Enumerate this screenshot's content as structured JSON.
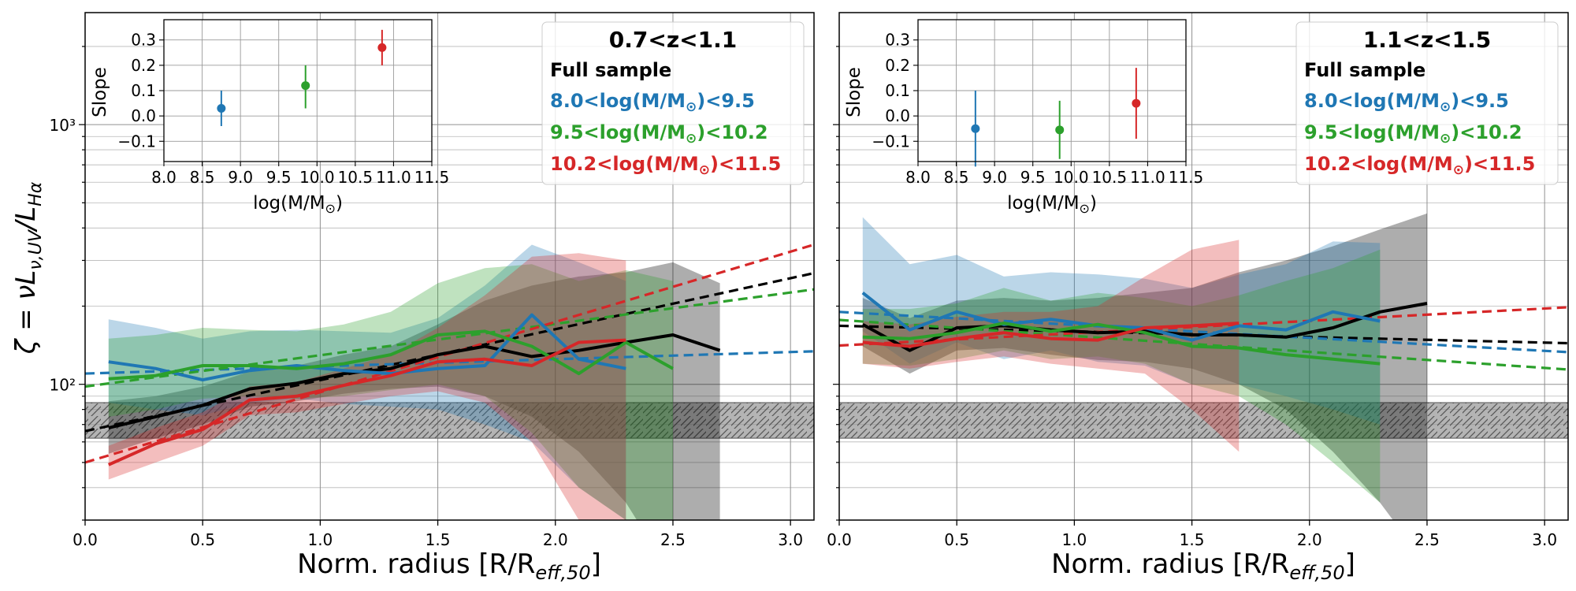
{
  "figure": {
    "ylabel": "ζ = νL",
    "ylabel_sub": "ν,UV",
    "ylabel_tail": "/L",
    "ylabel_sub2": "Hα",
    "xlabel": "Norm. radius [R/R",
    "xlabel_sub": "eff,50",
    "xlabel_tail": "]",
    "inset_ylabel": "Slope",
    "inset_xlabel": "log(M/M",
    "inset_xlabel_tail": ")",
    "colors": {
      "full": "#000000",
      "low": "#1f77b4",
      "mid": "#2ca02c",
      "high": "#d62728",
      "hatch": "#7f7f7f"
    }
  },
  "legend": {
    "full": "Full sample",
    "low": "8.0<log(M/M",
    "low_tail": ")<9.5",
    "mid": "9.5<log(M/M",
    "mid_tail": ")<10.2",
    "high": "10.2<log(M/M",
    "high_tail": ")<11.5"
  },
  "chart_data": [
    {
      "type": "line",
      "title": "0.7<z<1.1",
      "xlabel": "Norm. radius [R/R_eff,50]",
      "ylabel": "ζ = νL_ν,UV/L_Hα",
      "xlim": [
        0,
        3.1
      ],
      "ylim_log": [
        30,
        2700
      ],
      "xticks": [
        "0.0",
        "0.5",
        "1.0",
        "1.5",
        "2.0",
        "2.5",
        "3.0"
      ],
      "yticks": [
        "10²",
        "10³"
      ],
      "hatch_band": [
        62,
        85
      ],
      "series": [
        {
          "name": "Full sample",
          "color": "full",
          "x": [
            0.1,
            0.3,
            0.5,
            0.7,
            0.9,
            1.1,
            1.3,
            1.5,
            1.7,
            1.9,
            2.1,
            2.3,
            2.5,
            2.7
          ],
          "y": [
            68,
            75,
            83,
            96,
            101,
            110,
            115,
            130,
            140,
            128,
            135,
            145,
            155,
            135
          ],
          "band_lo": [
            54,
            62,
            70,
            82,
            86,
            92,
            96,
            98,
            90,
            75,
            55,
            35,
            18,
            10
          ],
          "band_hi": [
            86,
            90,
            98,
            112,
            118,
            130,
            140,
            170,
            210,
            240,
            260,
            270,
            295,
            245
          ]
        },
        {
          "name": "8.0<log(M/M⊙)<9.5",
          "color": "low",
          "x": [
            0.1,
            0.3,
            0.5,
            0.7,
            0.9,
            1.1,
            1.3,
            1.5,
            1.7,
            1.9,
            2.1,
            2.3
          ],
          "y": [
            122,
            115,
            104,
            113,
            118,
            113,
            110,
            115,
            118,
            185,
            125,
            115
          ],
          "band_lo": [
            85,
            80,
            76,
            85,
            88,
            84,
            82,
            80,
            70,
            60,
            40,
            30
          ],
          "band_hi": [
            178,
            165,
            150,
            160,
            162,
            160,
            158,
            180,
            240,
            345,
            295,
            250
          ]
        },
        {
          "name": "9.5<log(M/M⊙)<10.2",
          "color": "mid",
          "x": [
            0.1,
            0.3,
            0.5,
            0.7,
            0.9,
            1.1,
            1.3,
            1.5,
            1.7,
            1.9,
            2.1,
            2.3,
            2.5
          ],
          "y": [
            105,
            108,
            118,
            118,
            115,
            120,
            130,
            155,
            160,
            140,
            110,
            145,
            115
          ],
          "band_lo": [
            75,
            80,
            88,
            90,
            88,
            90,
            95,
            100,
            90,
            65,
            40,
            30,
            10
          ],
          "band_hi": [
            150,
            155,
            165,
            162,
            160,
            170,
            190,
            245,
            280,
            290,
            250,
            275,
            250
          ]
        },
        {
          "name": "10.2<log(M/M⊙)<11.5",
          "color": "high",
          "x": [
            0.1,
            0.3,
            0.5,
            0.7,
            0.9,
            1.1,
            1.3,
            1.5,
            1.7,
            1.9,
            2.1,
            2.3
          ],
          "y": [
            49,
            59,
            67,
            87,
            90,
            99,
            108,
            122,
            125,
            118,
            145,
            148
          ],
          "band_lo": [
            43,
            50,
            58,
            76,
            78,
            84,
            90,
            94,
            85,
            60,
            30,
            15
          ],
          "band_hi": [
            58,
            68,
            78,
            98,
            102,
            115,
            130,
            165,
            220,
            310,
            320,
            300
          ]
        }
      ],
      "fits": [
        {
          "color": "full",
          "x0": 0,
          "y0": 66,
          "x1": 3.1,
          "y1": 268
        },
        {
          "color": "low",
          "x0": 0,
          "y0": 110,
          "x1": 3.1,
          "y1": 134
        },
        {
          "color": "mid",
          "x0": 0,
          "y0": 98,
          "x1": 3.1,
          "y1": 232
        },
        {
          "color": "high",
          "x0": 0,
          "y0": 50,
          "x1": 3.1,
          "y1": 345
        }
      ],
      "legend_title": "0.7<z<1.1",
      "inset": {
        "xlim": [
          8.0,
          11.5
        ],
        "ylim": [
          -0.18,
          0.38
        ],
        "xticks": [
          "8.0",
          "8.5",
          "9.0",
          "9.5",
          "10.0",
          "10.5",
          "11.0",
          "11.5"
        ],
        "yticks": [
          "−0.1",
          "0.0",
          "0.1",
          "0.2",
          "0.3"
        ],
        "points": [
          {
            "color": "low",
            "x": 8.75,
            "y": 0.03,
            "err_lo": 0.07,
            "err_hi": 0.07
          },
          {
            "color": "mid",
            "x": 9.85,
            "y": 0.12,
            "err_lo": 0.09,
            "err_hi": 0.08
          },
          {
            "color": "high",
            "x": 10.85,
            "y": 0.27,
            "err_lo": 0.07,
            "err_hi": 0.07
          }
        ]
      }
    },
    {
      "type": "line",
      "title": "1.1<z<1.5",
      "xlabel": "Norm. radius [R/R_eff,50]",
      "ylabel": "",
      "xlim": [
        0,
        3.1
      ],
      "ylim_log": [
        30,
        2700
      ],
      "xticks": [
        "0.0",
        "0.5",
        "1.0",
        "1.5",
        "2.0",
        "2.5",
        "3.0"
      ],
      "yticks": [],
      "hatch_band": [
        62,
        85
      ],
      "series": [
        {
          "name": "Full sample",
          "color": "full",
          "x": [
            0.1,
            0.3,
            0.5,
            0.7,
            0.9,
            1.1,
            1.3,
            1.5,
            1.7,
            1.9,
            2.1,
            2.3,
            2.5
          ],
          "y": [
            170,
            135,
            165,
            168,
            162,
            158,
            160,
            155,
            155,
            152,
            165,
            190,
            205
          ],
          "band_lo": [
            140,
            110,
            135,
            138,
            130,
            124,
            122,
            115,
            100,
            80,
            55,
            35,
            20
          ],
          "band_hi": [
            215,
            180,
            210,
            215,
            210,
            215,
            225,
            235,
            270,
            300,
            340,
            395,
            455
          ]
        },
        {
          "name": "8.0<log(M/M⊙)<9.5",
          "color": "low",
          "x": [
            0.1,
            0.3,
            0.5,
            0.7,
            0.9,
            1.1,
            1.3,
            1.5,
            1.7,
            1.9,
            2.1,
            2.3
          ],
          "y": [
            225,
            162,
            190,
            170,
            178,
            168,
            165,
            148,
            168,
            162,
            190,
            175
          ],
          "band_lo": [
            160,
            120,
            145,
            125,
            135,
            122,
            118,
            100,
            100,
            90,
            80,
            70
          ],
          "band_hi": [
            440,
            290,
            315,
            260,
            270,
            265,
            255,
            235,
            265,
            290,
            355,
            350
          ]
        },
        {
          "name": "9.5<log(M/M⊙)<10.2",
          "color": "mid",
          "x": [
            0.1,
            0.3,
            0.5,
            0.7,
            0.9,
            1.1,
            1.3,
            1.5,
            1.7,
            1.9,
            2.1,
            2.3
          ],
          "y": [
            152,
            150,
            158,
            172,
            160,
            170,
            158,
            140,
            138,
            130,
            125,
            120
          ],
          "band_lo": [
            120,
            118,
            125,
            135,
            125,
            128,
            120,
            100,
            90,
            70,
            50,
            35
          ],
          "band_hi": [
            195,
            195,
            205,
            235,
            210,
            225,
            215,
            200,
            220,
            250,
            280,
            330
          ]
        },
        {
          "name": "10.2<log(M/M⊙)<11.5",
          "color": "high",
          "x": [
            0.1,
            0.3,
            0.5,
            0.7,
            0.9,
            1.1,
            1.3,
            1.5,
            1.7
          ],
          "y": [
            145,
            140,
            150,
            158,
            150,
            148,
            165,
            168,
            172
          ],
          "band_lo": [
            120,
            115,
            122,
            128,
            120,
            115,
            110,
            80,
            55
          ],
          "band_hi": [
            175,
            170,
            182,
            190,
            190,
            200,
            260,
            330,
            360
          ]
        }
      ],
      "fits": [
        {
          "color": "full",
          "x0": 0,
          "y0": 168,
          "x1": 3.1,
          "y1": 144
        },
        {
          "color": "low",
          "x0": 0,
          "y0": 190,
          "x1": 3.1,
          "y1": 133
        },
        {
          "color": "mid",
          "x0": 0,
          "y0": 177,
          "x1": 3.1,
          "y1": 114
        },
        {
          "color": "high",
          "x0": 0,
          "y0": 141,
          "x1": 3.1,
          "y1": 198
        }
      ],
      "legend_title": "1.1<z<1.5",
      "inset": {
        "xlim": [
          8.0,
          11.5
        ],
        "ylim": [
          -0.18,
          0.38
        ],
        "xticks": [
          "8.0",
          "8.5",
          "9.0",
          "9.5",
          "10.0",
          "10.5",
          "11.0",
          "11.5"
        ],
        "yticks": [
          "−0.1",
          "0.0",
          "0.1",
          "0.2",
          "0.3"
        ],
        "points": [
          {
            "color": "low",
            "x": 8.75,
            "y": -0.05,
            "err_lo": 0.15,
            "err_hi": 0.15
          },
          {
            "color": "mid",
            "x": 9.85,
            "y": -0.055,
            "err_lo": 0.115,
            "err_hi": 0.115
          },
          {
            "color": "high",
            "x": 10.85,
            "y": 0.05,
            "err_lo": 0.14,
            "err_hi": 0.14
          }
        ]
      }
    }
  ]
}
